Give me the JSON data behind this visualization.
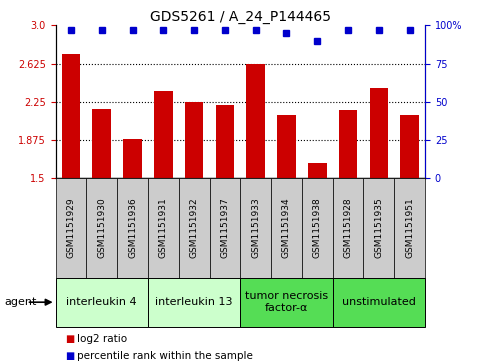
{
  "title": "GDS5261 / A_24_P144465",
  "samples": [
    "GSM1151929",
    "GSM1151930",
    "GSM1151936",
    "GSM1151931",
    "GSM1151932",
    "GSM1151937",
    "GSM1151933",
    "GSM1151934",
    "GSM1151938",
    "GSM1151928",
    "GSM1151935",
    "GSM1151951"
  ],
  "log2_values": [
    2.72,
    2.18,
    1.88,
    2.35,
    2.25,
    2.22,
    2.62,
    2.12,
    1.65,
    2.17,
    2.38,
    2.12
  ],
  "percentile_values": [
    97,
    97,
    97,
    97,
    97,
    97,
    97,
    95,
    90,
    97,
    97,
    97
  ],
  "ylim_left": [
    1.5,
    3.0
  ],
  "ylim_right": [
    0,
    100
  ],
  "yticks_left": [
    1.5,
    1.875,
    2.25,
    2.625,
    3.0
  ],
  "yticks_right": [
    0,
    25,
    50,
    75,
    100
  ],
  "bar_color": "#cc0000",
  "dot_color": "#0000cc",
  "groups": [
    {
      "label": "interleukin 4",
      "count": 3,
      "color": "#ccffcc"
    },
    {
      "label": "interleukin 13",
      "count": 3,
      "color": "#ccffcc"
    },
    {
      "label": "tumor necrosis\nfactor-α",
      "count": 3,
      "color": "#55dd55"
    },
    {
      "label": "unstimulated",
      "count": 3,
      "color": "#55dd55"
    }
  ],
  "agent_label": "agent",
  "legend_items": [
    {
      "label": "log2 ratio",
      "color": "#cc0000",
      "marker": "s"
    },
    {
      "label": "percentile rank within the sample",
      "color": "#0000cc",
      "marker": "s"
    }
  ],
  "title_fontsize": 10,
  "tick_fontsize": 7,
  "sample_fontsize": 6.5,
  "group_fontsize": 8,
  "bg_color": "#cccccc",
  "white": "#ffffff"
}
